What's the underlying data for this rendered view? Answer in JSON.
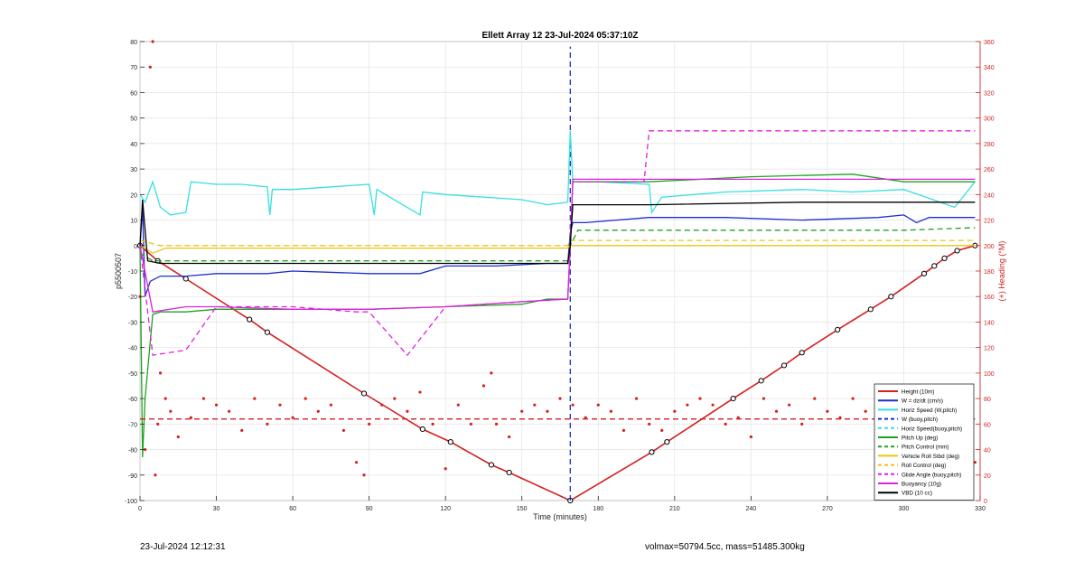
{
  "footer": {
    "timestamp": "23-Jul-2024 12:12:31",
    "params": "volmax=50794.5cc, mass=51485.300kg"
  },
  "chart_data": {
    "type": "line",
    "title": "Ellett Array 12 23-Jul-2024 05:37:10Z",
    "xlabel": "Time (minutes)",
    "ylabel": "p5500507",
    "ylabel_right": "(+) Heading (°M)",
    "xlim": [
      0,
      330
    ],
    "ylim": [
      -100,
      80
    ],
    "ylim_right": [
      0,
      360
    ],
    "xticks": [
      0,
      30,
      60,
      90,
      120,
      150,
      180,
      210,
      240,
      270,
      300,
      330
    ],
    "yticks": [
      -100,
      -90,
      -80,
      -70,
      -60,
      -50,
      -40,
      -30,
      -20,
      -10,
      0,
      10,
      20,
      30,
      40,
      50,
      60,
      70,
      80
    ],
    "yticks_right": [
      0,
      20,
      40,
      60,
      80,
      100,
      120,
      140,
      160,
      180,
      200,
      220,
      240,
      260,
      280,
      300,
      320,
      340,
      360
    ],
    "grid": true,
    "legend_position": "bottom-right",
    "apogee_time": 169,
    "legend": [
      {
        "label": "Height (10m)",
        "color": "#d42020",
        "dash": "solid"
      },
      {
        "label": "W = dz/dt (cm/s)",
        "color": "#1f2fc8",
        "dash": "solid"
      },
      {
        "label": "Horiz Speed (W,pitch)",
        "color": "#35e0e0",
        "dash": "solid"
      },
      {
        "label": "W (buoy,pitch)",
        "color": "#1f2fc8",
        "dash": "dash"
      },
      {
        "label": "Horiz Speed(buoy,pitch)",
        "color": "#35e0e0",
        "dash": "dash"
      },
      {
        "label": "Pitch Up (deg)",
        "color": "#1fa31f",
        "dash": "solid"
      },
      {
        "label": "Pitch Control (mm)",
        "color": "#1fa31f",
        "dash": "dash"
      },
      {
        "label": "Vehicle Roll Stbd (deg)",
        "color": "#e8c614",
        "dash": "solid"
      },
      {
        "label": "Roll Control (deg)",
        "color": "#e8c614",
        "dash": "dash"
      },
      {
        "label": "Glide Angle (buoy,pitch)",
        "color": "#e020e0",
        "dash": "dash"
      },
      {
        "label": "Buoyancy (10g)",
        "color": "#e020e0",
        "dash": "solid"
      },
      {
        "label": "VBD (10 cc)",
        "color": "#000000",
        "dash": "solid"
      }
    ],
    "series": [
      {
        "name": "Height (10m)",
        "color": "#d42020",
        "dash": "solid",
        "markers": true,
        "x": [
          0,
          7,
          18,
          43,
          50,
          88,
          111,
          122,
          138,
          145,
          169,
          201,
          207,
          233,
          244,
          253,
          260,
          274,
          287,
          295,
          308,
          312,
          316,
          321,
          328
        ],
        "y": [
          0,
          -6,
          -13,
          -29,
          -34,
          -58,
          -72,
          -77,
          -86,
          -89,
          -100,
          -81,
          -77,
          -60,
          -53,
          -47,
          -42,
          -33,
          -25,
          -20,
          -11,
          -8,
          -5,
          -2,
          0
        ]
      },
      {
        "name": "W = dz/dt (cm/s)",
        "color": "#1f2fc8",
        "dash": "solid",
        "x": [
          0,
          1,
          2,
          4,
          8,
          18,
          30,
          50,
          60,
          90,
          110,
          120,
          140,
          160,
          168,
          169,
          170,
          175,
          200,
          230,
          260,
          290,
          300,
          305,
          310,
          320,
          328
        ],
        "y": [
          0,
          15,
          -20,
          -14,
          -12,
          -12,
          -11,
          -11,
          -10,
          -11,
          -11,
          -8,
          -8,
          -7,
          -7,
          5,
          9,
          9,
          11,
          11,
          10,
          11,
          12,
          9,
          11,
          11,
          11
        ]
      },
      {
        "name": "W (buoy,pitch)",
        "color": "#1f2fc8",
        "dash": "dash",
        "x": [
          169,
          169,
          169
        ],
        "y": [
          -100,
          0,
          78
        ]
      },
      {
        "name": "Horiz Speed (W,pitch)",
        "color": "#35e0e0",
        "dash": "solid",
        "x": [
          0,
          2,
          5,
          8,
          12,
          18,
          20,
          30,
          40,
          50,
          51,
          52,
          60,
          90,
          92,
          93,
          110,
          111,
          120,
          150,
          160,
          168,
          169,
          170,
          180,
          200,
          201,
          205,
          230,
          260,
          280,
          300,
          320,
          328
        ],
        "y": [
          20,
          17,
          25,
          15,
          12,
          13,
          25,
          24,
          24,
          23,
          12,
          22,
          22,
          24,
          12,
          22,
          12,
          21,
          20,
          18,
          16,
          17,
          45,
          25,
          25,
          24,
          13,
          19,
          21,
          22,
          21,
          22,
          15,
          25
        ]
      },
      {
        "name": "Pitch Up (deg)",
        "color": "#1fa31f",
        "dash": "solid",
        "x": [
          0,
          1,
          2,
          5,
          8,
          18,
          30,
          60,
          90,
          120,
          150,
          160,
          168,
          169,
          170,
          180,
          200,
          240,
          280,
          300,
          320,
          328
        ],
        "y": [
          0,
          -83,
          -60,
          -27,
          -26,
          -26,
          -25,
          -25,
          -25,
          -24,
          -23,
          -21,
          -21,
          0,
          25,
          25,
          25,
          27,
          28,
          25,
          25,
          25
        ]
      },
      {
        "name": "Pitch Control (mm)",
        "color": "#1fa31f",
        "dash": "dash",
        "x": [
          0,
          5,
          168,
          169,
          172,
          200,
          260,
          300,
          328
        ],
        "y": [
          -3,
          -6,
          -6,
          0,
          6,
          6,
          6,
          6,
          7
        ]
      },
      {
        "name": "Vehicle Roll Stbd (deg)",
        "color": "#e8c614",
        "dash": "solid",
        "x": [
          0,
          5,
          10,
          18,
          30,
          60,
          90,
          120,
          150,
          160,
          168,
          169,
          170,
          200,
          240,
          280,
          300,
          328
        ],
        "y": [
          0,
          -3,
          -1,
          -1,
          -1,
          -1,
          -1,
          -1,
          -1,
          -1,
          -1,
          0,
          0,
          0,
          0,
          0,
          0,
          0
        ]
      },
      {
        "name": "Roll Control (deg)",
        "color": "#e8c614",
        "dash": "dash",
        "x": [
          0,
          8,
          18,
          60,
          120,
          168,
          169,
          200,
          260,
          328
        ],
        "y": [
          2,
          0,
          0,
          0,
          0,
          0,
          2,
          2,
          2,
          2
        ]
      },
      {
        "name": "Buoyancy (10g)",
        "color": "#e020e0",
        "dash": "solid",
        "x": [
          0,
          5,
          18,
          30,
          60,
          90,
          120,
          150,
          168,
          169,
          170,
          200,
          240,
          280,
          300,
          328
        ],
        "y": [
          0,
          -26,
          -24,
          -24,
          -25,
          -25,
          -24,
          -22,
          -21,
          0,
          26,
          26,
          26,
          26,
          26,
          26
        ]
      },
      {
        "name": "Glide Angle (buoy,pitch)",
        "color": "#e020e0",
        "dash": "dash",
        "x": [
          0,
          5,
          18,
          30,
          60,
          85,
          90,
          105,
          120,
          150,
          168,
          169,
          170,
          198,
          200,
          230,
          260,
          300,
          328
        ],
        "y": [
          0,
          -43,
          -41,
          -24,
          -24,
          -26,
          -26,
          -43,
          -24,
          -22,
          -21,
          0,
          25,
          25,
          45,
          45,
          45,
          45,
          45
        ]
      },
      {
        "name": "VBD (10 cc)",
        "color": "#000000",
        "dash": "solid",
        "x": [
          0,
          1,
          3,
          8,
          60,
          120,
          168,
          169,
          170,
          200,
          260,
          300,
          328
        ],
        "y": [
          0,
          18,
          -6,
          -7,
          -7,
          -7,
          -7,
          0,
          16,
          16,
          17,
          17,
          17
        ]
      },
      {
        "name": "Heading (°M)",
        "color": "#d42020",
        "dash": "dots",
        "axis": "right",
        "x": [
          0,
          2,
          4,
          5,
          6,
          7,
          8,
          10,
          12,
          15,
          20,
          25,
          30,
          35,
          40,
          45,
          50,
          55,
          60,
          65,
          70,
          75,
          80,
          85,
          88,
          90,
          95,
          100,
          105,
          110,
          115,
          120,
          125,
          130,
          135,
          138,
          140,
          145,
          150,
          155,
          160,
          165,
          170,
          175,
          180,
          185,
          190,
          195,
          200,
          205,
          210,
          215,
          220,
          225,
          230,
          235,
          240,
          245,
          250,
          255,
          260,
          265,
          270,
          275,
          280,
          285,
          290,
          295,
          300,
          305,
          310,
          315,
          320,
          325,
          328
        ],
        "y": [
          160,
          40,
          340,
          360,
          20,
          60,
          100,
          80,
          70,
          50,
          65,
          80,
          75,
          70,
          55,
          80,
          60,
          75,
          65,
          80,
          70,
          75,
          55,
          30,
          20,
          60,
          75,
          80,
          70,
          85,
          60,
          25,
          75,
          60,
          90,
          100,
          60,
          50,
          70,
          75,
          70,
          80,
          75,
          65,
          75,
          70,
          55,
          80,
          60,
          55,
          70,
          75,
          80,
          75,
          60,
          65,
          50,
          80,
          70,
          75,
          60,
          80,
          70,
          65,
          80,
          70,
          75,
          60,
          50,
          40,
          70,
          60,
          75,
          80,
          30
        ]
      },
      {
        "name": "Mean Heading",
        "color": "#d42020",
        "dash": "dash",
        "axis": "right",
        "x": [
          0,
          328
        ],
        "y": [
          64,
          64
        ]
      }
    ]
  }
}
